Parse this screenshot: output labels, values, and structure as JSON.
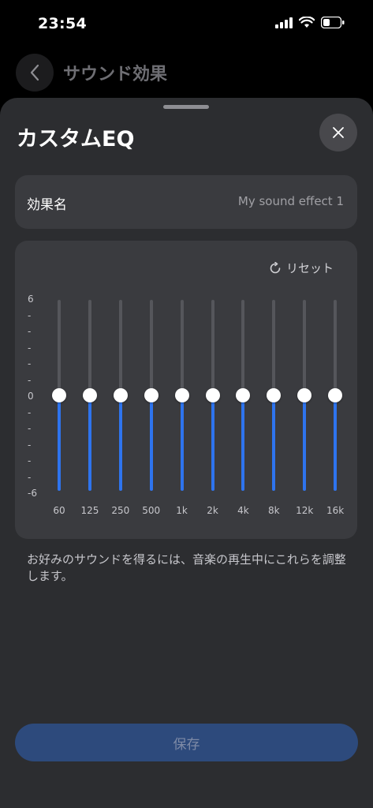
{
  "status_bar": {
    "time": "23:54"
  },
  "header": {
    "title": "サウンド効果"
  },
  "sheet": {
    "title": "カスタムEQ",
    "effect_name": {
      "label": "効果名",
      "value": "My sound effect 1"
    },
    "eq": {
      "reset_label": "リセット",
      "scale_labels": [
        "6",
        "-",
        "-",
        "-",
        "-",
        "-",
        "0",
        "-",
        "-",
        "-",
        "-",
        "-",
        "-6"
      ],
      "bands": [
        {
          "freq": "60",
          "gain": 0
        },
        {
          "freq": "125",
          "gain": 0
        },
        {
          "freq": "250",
          "gain": 0
        },
        {
          "freq": "500",
          "gain": 0
        },
        {
          "freq": "1k",
          "gain": 0
        },
        {
          "freq": "2k",
          "gain": 0
        },
        {
          "freq": "4k",
          "gain": 0
        },
        {
          "freq": "8k",
          "gain": 0
        },
        {
          "freq": "12k",
          "gain": 0
        },
        {
          "freq": "16k",
          "gain": 0
        }
      ]
    },
    "hint": "お好みのサウンドを得るには、音楽の再生中にこれらを調整します。",
    "save_label": "保存"
  },
  "colors": {
    "accent": "#2e74ee",
    "sheet_bg": "#2c2d30",
    "card_bg": "#3a3b3f"
  }
}
